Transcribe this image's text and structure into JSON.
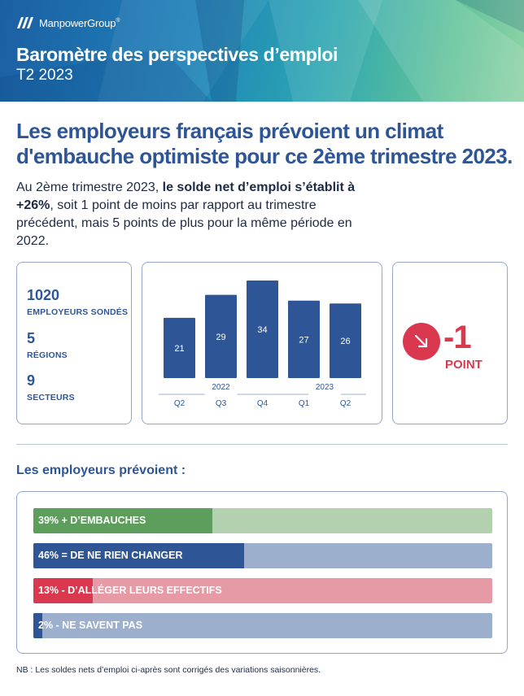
{
  "header": {
    "brand": "ManpowerGroup",
    "brand_mark": "®",
    "title": "Baromètre des perspectives d’emploi",
    "subtitle": "T2 2023",
    "colors": {
      "dark_blue": "#1b5fa3",
      "teal": "#2aa4b3",
      "green": "#8fd3a6"
    }
  },
  "headline": {
    "line1": "Les employeurs français prévoient un climat",
    "line2": "d'embauche optimiste pour ce 2ème trimestre 2023."
  },
  "intro": {
    "pre": "Au 2ème trimestre 2023, ",
    "bold": "le solde net d’emploi s’établit à +26%",
    "post": ", soit 1 point de moins par rapport au trimestre précédent, mais 5 points de plus pour la même période en 2022."
  },
  "stats": [
    {
      "value": "1020",
      "label": "EMPLOYEURS SONDÉS"
    },
    {
      "value": "5",
      "label": "RÉGIONS"
    },
    {
      "value": "9",
      "label": "SECTEURS"
    }
  ],
  "chart_data": {
    "type": "bar",
    "categories": [
      "Q2",
      "Q3",
      "Q4",
      "Q1",
      "Q2"
    ],
    "groups": [
      {
        "label": "2022",
        "from": 0,
        "to": 2
      },
      {
        "label": "2023",
        "from": 3,
        "to": 4
      }
    ],
    "values": [
      21,
      29,
      34,
      27,
      26
    ],
    "ylim": [
      0,
      34
    ],
    "bar_color": "#2e5697",
    "grid": false,
    "legend": "none"
  },
  "change": {
    "value": "-1",
    "label": "POINT",
    "icon": "arrow-down-right-icon",
    "color": "#d9384f"
  },
  "section_title": "Les employeurs prévoient :",
  "expectations": [
    {
      "label": "39% + D’EMBAUCHES",
      "percent": 39,
      "color": "#5e9e5d",
      "track": "#b3d1ae"
    },
    {
      "label": "46% = DE NE RIEN CHANGER",
      "percent": 46,
      "color": "#2e5697",
      "track": "#9cb0ce"
    },
    {
      "label": "13% - D’ALLÉGER LEURS EFFECTIFS",
      "percent": 13,
      "color": "#d9384f",
      "track": "#e69aa6"
    },
    {
      "label": "2% - NE SAVENT PAS",
      "percent": 2,
      "color": "#2e5697",
      "track": "#9cb0ce"
    }
  ],
  "note": "NB : Les soldes nets d’emploi ci-après sont corrigés des variations saisonnières."
}
